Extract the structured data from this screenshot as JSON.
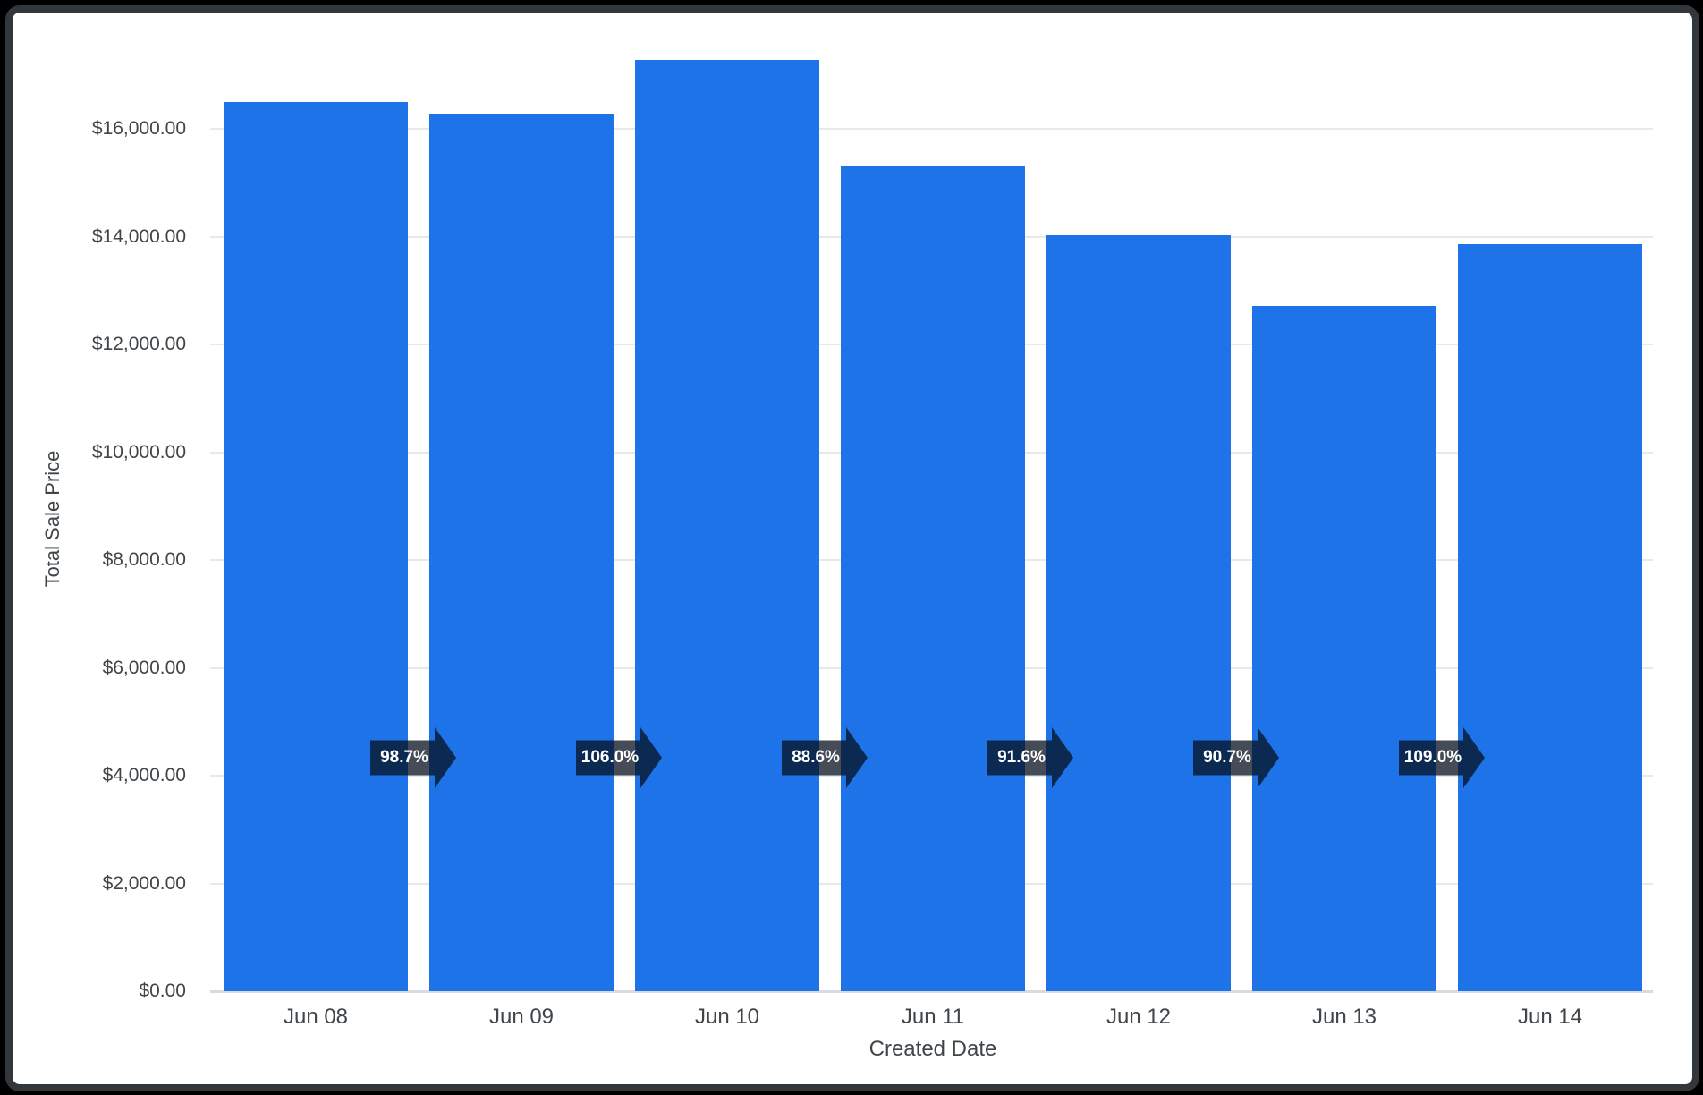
{
  "chart_data": {
    "type": "bar",
    "title": "",
    "xlabel": "Created Date",
    "ylabel": "Total Sale Price",
    "series_name": "Total Sale Price",
    "categories": [
      "Jun 08",
      "Jun 09",
      "Jun 10",
      "Jun 11",
      "Jun 12",
      "Jun 13",
      "Jun 14"
    ],
    "values": [
      16500,
      16290,
      17270,
      15310,
      14020,
      12715,
      13860
    ],
    "pct_of_previous_labels": [
      "98.7%",
      "106.0%",
      "88.6%",
      "91.6%",
      "90.7%",
      "109.0%"
    ],
    "y_tick_labels": [
      "$0.00",
      "$2,000.00",
      "$4,000.00",
      "$6,000.00",
      "$8,000.00",
      "$10,000.00",
      "$12,000.00",
      "$14,000.00",
      "$16,000.00"
    ],
    "y_tick_values": [
      0,
      2000,
      4000,
      6000,
      8000,
      10000,
      12000,
      14000,
      16000
    ],
    "ylim": [
      0,
      17400
    ],
    "grid": "horizontal",
    "legend": "none",
    "colors": {
      "bar": "#1e73e8",
      "arrow_fill": "rgba(7,16,32,0.75)",
      "arrow_text": "#ffffff",
      "axis_text": "#3f4549",
      "grid_line": "#e9e9ea",
      "baseline": "#d8dce2",
      "card_background": "#ffffff",
      "page_background": "#000000",
      "card_border": "#31373a"
    }
  }
}
